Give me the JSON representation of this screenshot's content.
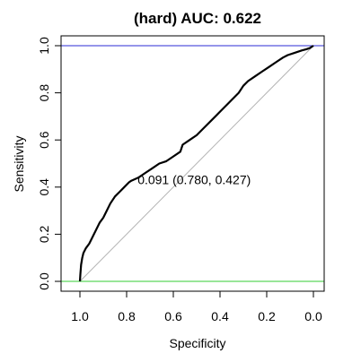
{
  "chart_data": {
    "type": "line",
    "title": "(hard) AUC: 0.622",
    "xlabel": "Specificity",
    "ylabel": "Sensitivity",
    "xlim": [
      1.0,
      0.0
    ],
    "ylim": [
      0.0,
      1.0
    ],
    "x_ticks": [
      "1.0",
      "0.8",
      "0.6",
      "0.4",
      "0.2",
      "0.0"
    ],
    "y_ticks": [
      "0.0",
      "0.2",
      "0.4",
      "0.6",
      "0.8",
      "1.0"
    ],
    "series": [
      {
        "color": "#000000",
        "x": [
          1.0,
          0.998,
          0.995,
          0.99,
          0.985,
          0.975,
          0.96,
          0.945,
          0.93,
          0.915,
          0.9,
          0.885,
          0.87,
          0.85,
          0.83,
          0.81,
          0.79,
          0.78,
          0.75,
          0.72,
          0.69,
          0.66,
          0.63,
          0.6,
          0.57,
          0.56,
          0.53,
          0.5,
          0.47,
          0.44,
          0.41,
          0.38,
          0.35,
          0.32,
          0.3,
          0.28,
          0.25,
          0.22,
          0.19,
          0.16,
          0.13,
          0.11,
          0.08,
          0.05,
          0.03,
          0.015,
          0.0
        ],
        "y": [
          0.0,
          0.03,
          0.07,
          0.1,
          0.12,
          0.14,
          0.16,
          0.19,
          0.22,
          0.25,
          0.27,
          0.3,
          0.33,
          0.36,
          0.38,
          0.4,
          0.42,
          0.427,
          0.44,
          0.46,
          0.48,
          0.5,
          0.51,
          0.53,
          0.55,
          0.58,
          0.6,
          0.62,
          0.65,
          0.68,
          0.71,
          0.74,
          0.77,
          0.8,
          0.83,
          0.85,
          0.87,
          0.89,
          0.91,
          0.93,
          0.95,
          0.96,
          0.97,
          0.98,
          0.985,
          0.99,
          1.0
        ]
      }
    ],
    "reference_lines": [
      {
        "kind": "diagonal",
        "color": "#b3b3b3"
      },
      {
        "kind": "horizontal",
        "y": 1.0,
        "color": "#2b2bd6"
      },
      {
        "kind": "horizontal",
        "y": 0.0,
        "color": "#33cc33"
      }
    ],
    "annotation": {
      "text": "0.091 (0.780, 0.427)",
      "x": 0.78,
      "y": 0.427
    },
    "grid": false,
    "legend": "none"
  }
}
